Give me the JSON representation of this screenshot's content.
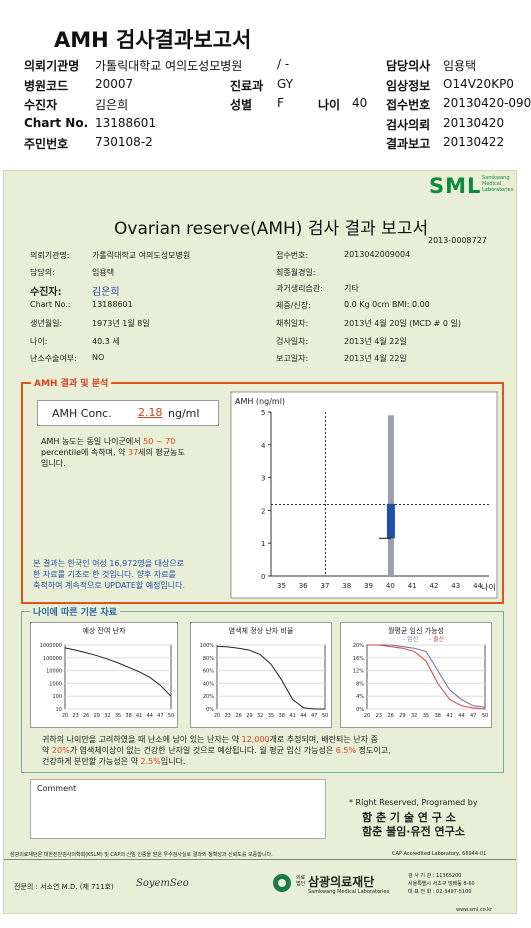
{
  "header": {
    "title": "AMH 검사결과보고서",
    "rows": [
      {
        "l1": "의뢰기관명",
        "v1": "가톨릭대학교 여의도성모병원",
        "m": "/ -",
        "l3": "담당의사",
        "v3": "임용택"
      },
      {
        "l1": "병원코드",
        "v1": "20007",
        "l2": "진료과",
        "v2": "GY",
        "l3": "임상정보",
        "v3": "O14V20KP0"
      },
      {
        "l1": "수진자",
        "v1": "김은희",
        "l2": "성별",
        "v2": "F",
        "l2b": "나이",
        "v2b": "40",
        "l3": "접수번호",
        "v3": "20130420-090"
      },
      {
        "l1": "Chart No.",
        "v1": "13188601",
        "l3": "검사의뢰",
        "v3": "20130420"
      },
      {
        "l1": "주민번호",
        "v1": "730108-2",
        "l3": "결과보고",
        "v3": "20130422"
      }
    ]
  },
  "sheet": {
    "logo": "SML",
    "logo_sub": "Samkwang Medical Laboratories",
    "title": "Ovarian reserve(AMH) 검사 결과 보고서",
    "doc_no": "2013-0008727",
    "info_left": [
      {
        "label": "의뢰기관명:",
        "value": "가톨릭대학교 여의도성모병원"
      },
      {
        "label": "담당의:",
        "value": "임용택"
      },
      {
        "label": "수진자:",
        "value": "김은희"
      },
      {
        "label": "Chart No.:",
        "value": "13188601"
      },
      {
        "label": "생년월일:",
        "value": "1973년 1월 8일"
      },
      {
        "label": "나이:",
        "value": "40.3 세"
      },
      {
        "label": "난소수술여부:",
        "value": "NO"
      }
    ],
    "info_right": [
      {
        "label": "접수번호:",
        "value": "2013042009004"
      },
      {
        "label": "최종월경일:",
        "value": ""
      },
      {
        "label": "과거생리습관:",
        "value": "기타"
      },
      {
        "label": "체중/신장:",
        "value": "0.0 Kg       0cm     BMI:   0.00"
      },
      {
        "label": "채취일자:",
        "value": "2013년 4월 20일   (MCD # 0 일)"
      },
      {
        "label": "검사일자:",
        "value": "2013년 4월 22일"
      },
      {
        "label": "보고일자:",
        "value": "2013년 4월 22일"
      }
    ],
    "analysis": {
      "section_title": "AMH 결과 및 분석",
      "conc_label": "AMH Conc.",
      "conc_value": "2.18",
      "conc_unit": "ng/ml",
      "pct_text_1": "AMH 농도는 동일 나이군에서",
      "pct_range": "50 ~ 70",
      "pct_text_2": "percentile에 속하며, 약",
      "pct_age": "37",
      "pct_text_3": "세의 평균농도",
      "pct_text_4": "입니다.",
      "note_1": "본 결과는 한국인 여성 16,972명을 대상으로",
      "note_2": "한 자료를 기초로 한 것입니다. 향후 자료를",
      "note_3": "축적하여 계속적으로 UPDATE할 예정입니다."
    },
    "basic": {
      "section_title": "나이에 따른 기본 자료",
      "chart1_title": "예상 잔여 난자",
      "chart2_title": "염색체 정상 난자 비율",
      "chart3_title": "월평균 임신 가능성",
      "chart3_legend_a": "- 임신",
      "chart3_legend_b": "- 출산",
      "desc_1a": "귀하의 나이만을 고려하였을 때 난소에 남아 있는 난자는 약",
      "desc_1b": "12,000",
      "desc_1c": "개로 추정되며, 배란되는 난자 중",
      "desc_2a": "약",
      "desc_2b": "20%",
      "desc_2c": "가 염색체이상이 없는 건강한 난자일 것으로 예상됩니다. 월 평균 임신 가능성은",
      "desc_2d": "6.5%",
      "desc_2e": "정도이고,",
      "desc_3a": "건강하게 분만할 가능성은 약",
      "desc_3b": "2.5%",
      "desc_3c": "입니다."
    },
    "comment_label": "Comment",
    "rights": "* Right Reserved, Programed by",
    "lab1": "함 춘 기 술 연 구 소",
    "lab2": "함춘 불임·유전 연구소",
    "fine_print": "삼광의료재단은 대한진단검사의학회(KSLM) 및 CAP의 신임 인증을 받은 우수검사실로 결과의 정확성과 신뢰도를 보증합니다.",
    "cap": "CAP Accredited Laboratory, 66944-01",
    "specialist": "전문의 : 서소연 M.D. (제 711호)",
    "signature": "SoyemSeo",
    "foundation": "삼광의료재단",
    "foundation_pre": "의료 법인",
    "foundation_en": "Samkwang Medical Laboratories",
    "addr_1": "검 사 기 관 : 11365200",
    "addr_2": "서울특별시 서초구 방배동 8-60",
    "addr_3": "대 표 전 화 : 02-3497-5100",
    "bottom": "www.sml.co.kr"
  },
  "chart_data": [
    {
      "type": "bar",
      "title": "",
      "ylabel": "AMH (ng/ml)",
      "x_ticks": [
        "35",
        "36",
        "37",
        "38",
        "39",
        "40",
        "41",
        "42",
        "43",
        "44"
      ],
      "xlabel": "나이",
      "ylim": [
        0,
        5
      ],
      "y_ticks": [
        "0",
        "1",
        "2",
        "3",
        "4",
        "5"
      ],
      "patient_age": 40,
      "patient_value": 2.18,
      "range_low": 1.15,
      "range_high": 2.2,
      "range_total": [
        0,
        4.9
      ],
      "ref_age": 37
    },
    {
      "type": "line",
      "title": "예상 잔여 난자",
      "x": [
        20,
        23,
        26,
        29,
        32,
        35,
        38,
        41,
        44,
        47,
        50
      ],
      "y_ticks": [
        "10",
        "100",
        "1000",
        "10000",
        "100000",
        "1000000"
      ],
      "y": [
        600000,
        400000,
        250000,
        150000,
        80000,
        40000,
        18000,
        8000,
        3000,
        700,
        100
      ]
    },
    {
      "type": "line",
      "title": "염색체 정상 난자 비율",
      "x": [
        20,
        23,
        26,
        29,
        32,
        35,
        38,
        41,
        44,
        47,
        50
      ],
      "y_ticks": [
        "0%",
        "20%",
        "40%",
        "60%",
        "80%",
        "100%"
      ],
      "y": [
        98,
        97,
        95,
        92,
        85,
        70,
        45,
        15,
        2,
        0,
        0
      ]
    },
    {
      "type": "line",
      "title": "월평균 임신 가능성",
      "x": [
        20,
        23,
        26,
        29,
        32,
        35,
        38,
        41,
        44,
        47,
        50
      ],
      "y_ticks": [
        "0%",
        "4%",
        "8%",
        "12%",
        "16%",
        "20%"
      ],
      "series": [
        {
          "name": "임신",
          "values": [
            20,
            20,
            20,
            19.5,
            19,
            18,
            12,
            6,
            3,
            1,
            0.5
          ]
        },
        {
          "name": "출산",
          "values": [
            20,
            20,
            19.5,
            19,
            18,
            15,
            8,
            3,
            1,
            0.3,
            0
          ]
        }
      ]
    }
  ]
}
